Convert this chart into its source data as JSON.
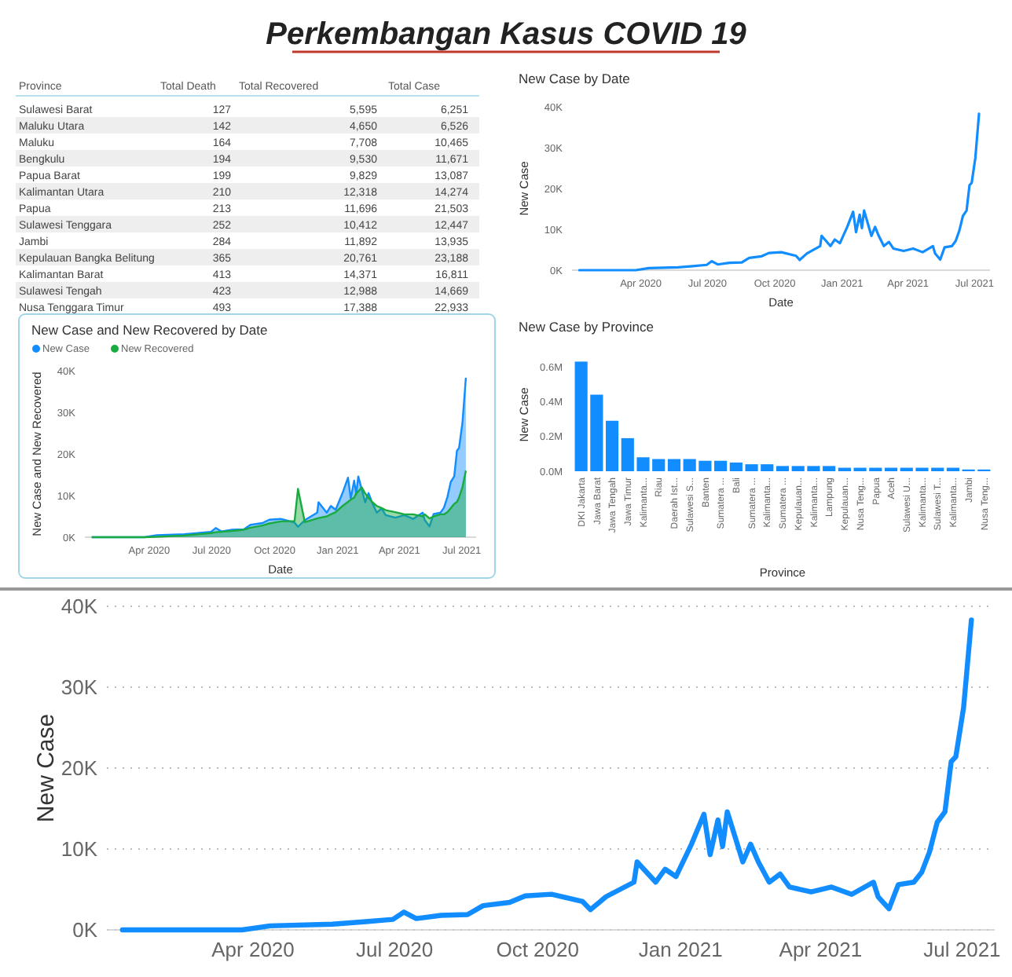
{
  "chart_data": [
    {
      "type": "other",
      "title": "Perkembangan Kasus COVID 19",
      "categories": [
        "Province",
        "Total Death",
        "Total Recovered",
        "Total Case"
      ],
      "y_categories": [
        "Sulawesi Barat",
        "Maluku Utara",
        "Maluku",
        "Bengkulu",
        "Papua Barat",
        "Kalimantan Utara",
        "Papua",
        "Sulawesi Tenggara",
        "Jambi",
        "Kepulauan Bangka Belitung",
        "Kalimantan Barat",
        "Sulawesi Tengah",
        "Nusa Tenggara Timur"
      ],
      "cell_labels": [
        [
          "127",
          "5,595",
          "6,251"
        ],
        [
          "142",
          "4,650",
          "6,526"
        ],
        [
          "164",
          "7,708",
          "10,465"
        ],
        [
          "194",
          "9,530",
          "11,671"
        ],
        [
          "199",
          "9,829",
          "13,087"
        ],
        [
          "210",
          "12,318",
          "14,274"
        ],
        [
          "213",
          "11,696",
          "21,503"
        ],
        [
          "252",
          "10,412",
          "12,447"
        ],
        [
          "284",
          "11,892",
          "13,935"
        ],
        [
          "365",
          "20,761",
          "23,188"
        ],
        [
          "413",
          "14,371",
          "16,811"
        ],
        [
          "423",
          "12,988",
          "14,669"
        ],
        [
          "493",
          "17,388",
          "22,933"
        ]
      ]
    },
    {
      "type": "line",
      "title": "New Case by Date",
      "xlabel": "Date",
      "ylabel": "New Case",
      "color": "#118dff",
      "x": [
        "2020-01-08",
        "2020-03-25",
        "2020-04-12",
        "2020-05-22",
        "2020-06-11",
        "2020-06-30",
        "2020-07-07",
        "2020-07-15",
        "2020-07-31",
        "2020-08-17",
        "2020-08-27",
        "2020-09-13",
        "2020-09-23",
        "2020-10-10",
        "2020-10-30",
        "2020-11-04",
        "2020-11-14",
        "2020-12-02",
        "2020-12-04",
        "2020-12-16",
        "2020-12-22",
        "2020-12-29",
        "2021-01-08",
        "2021-01-16",
        "2021-01-20",
        "2021-01-25",
        "2021-01-28",
        "2021-01-31",
        "2021-02-05",
        "2021-02-10",
        "2021-02-15",
        "2021-02-20",
        "2021-02-27",
        "2021-03-06",
        "2021-03-12",
        "2021-03-26",
        "2021-04-08",
        "2021-04-21",
        "2021-05-05",
        "2021-05-08",
        "2021-05-15",
        "2021-05-21",
        "2021-05-31",
        "2021-06-05",
        "2021-06-10",
        "2021-06-15",
        "2021-06-20",
        "2021-06-24",
        "2021-06-27",
        "2021-07-02",
        "2021-07-07"
      ],
      "values": [
        0,
        0,
        500,
        700,
        1000,
        1300,
        2200,
        1400,
        1800,
        1900,
        3000,
        3400,
        4200,
        4400,
        3500,
        2500,
        4100,
        5900,
        8400,
        5900,
        7500,
        6600,
        10600,
        14300,
        9300,
        13600,
        10300,
        14600,
        11500,
        8400,
        10600,
        8400,
        5900,
        6900,
        5300,
        4700,
        5300,
        4400,
        5900,
        4100,
        2600,
        5600,
        5900,
        7100,
        9600,
        13300,
        14600,
        20800,
        21400,
        27500,
        38300
      ],
      "xlim": [
        "2019-12-29",
        "2021-07-22"
      ],
      "ylim": [
        0,
        40000
      ],
      "xticks": [
        {
          "value": "2020-04-01",
          "label": "Apr 2020"
        },
        {
          "value": "2020-07-01",
          "label": "Jul 2020"
        },
        {
          "value": "2020-10-01",
          "label": "Oct 2020"
        },
        {
          "value": "2021-01-01",
          "label": "Jan 2021"
        },
        {
          "value": "2021-04-01",
          "label": "Apr 2021"
        },
        {
          "value": "2021-07-01",
          "label": "Jul 2021"
        }
      ],
      "yticks": [
        {
          "value": 0,
          "label": "0K"
        },
        {
          "value": 10000,
          "label": "10K"
        },
        {
          "value": 20000,
          "label": "20K"
        },
        {
          "value": 30000,
          "label": "30K"
        },
        {
          "value": 40000,
          "label": "40K"
        }
      ]
    },
    {
      "type": "area",
      "title": "New Case and New Recovered by Date",
      "xlabel": "Date",
      "ylabel": "New Case and New Recovered",
      "legend": "top left",
      "x": [
        "2020-01-08",
        "2020-03-25",
        "2020-04-12",
        "2020-05-22",
        "2020-06-11",
        "2020-06-30",
        "2020-07-07",
        "2020-07-15",
        "2020-07-31",
        "2020-08-17",
        "2020-08-27",
        "2020-09-13",
        "2020-09-23",
        "2020-10-10",
        "2020-10-30",
        "2020-11-04",
        "2020-11-14",
        "2020-12-02",
        "2020-12-04",
        "2020-12-16",
        "2020-12-22",
        "2020-12-29",
        "2021-01-08",
        "2021-01-16",
        "2021-01-20",
        "2021-01-25",
        "2021-01-28",
        "2021-01-31",
        "2021-02-05",
        "2021-02-10",
        "2021-02-15",
        "2021-02-20",
        "2021-02-27",
        "2021-03-06",
        "2021-03-12",
        "2021-03-26",
        "2021-04-08",
        "2021-04-21",
        "2021-05-05",
        "2021-05-08",
        "2021-05-15",
        "2021-05-21",
        "2021-05-31",
        "2021-06-05",
        "2021-06-10",
        "2021-06-15",
        "2021-06-20",
        "2021-06-24",
        "2021-06-27",
        "2021-07-02",
        "2021-07-07"
      ],
      "series": [
        {
          "name": "New Case",
          "color": "#118dff",
          "values": [
            0,
            0,
            500,
            700,
            1000,
            1300,
            2200,
            1400,
            1800,
            1900,
            3000,
            3400,
            4200,
            4400,
            3500,
            2500,
            4100,
            5900,
            8400,
            5900,
            7500,
            6600,
            10600,
            14300,
            9300,
            13600,
            10300,
            14600,
            11500,
            8400,
            10600,
            8400,
            5900,
            6900,
            5300,
            4700,
            5300,
            4400,
            5900,
            4100,
            2600,
            5600,
            5900,
            7100,
            9600,
            13300,
            14600,
            20800,
            21400,
            27500,
            38300
          ]
        },
        {
          "name": "New Recovered",
          "color": "#1aab40",
          "values": [
            0,
            0,
            100,
            400,
            700,
            1000,
            1200,
            1300,
            1500,
            1800,
            2300,
            2800,
            3300,
            3800,
            3900,
            11600,
            3600,
            4500,
            4600,
            5000,
            5500,
            6000,
            7500,
            8500,
            9000,
            9500,
            10500,
            11000,
            12000,
            10500,
            9500,
            8500,
            7500,
            7000,
            6500,
            6000,
            5500,
            5500,
            5000,
            5500,
            4500,
            5000,
            5500,
            5500,
            6000,
            7000,
            8000,
            8500,
            9500,
            12000,
            16000
          ]
        }
      ],
      "xlim": [
        "2019-12-29",
        "2021-07-22"
      ],
      "ylim": [
        0,
        40000
      ],
      "xticks": [
        {
          "value": "2020-04-01",
          "label": "Apr 2020"
        },
        {
          "value": "2020-07-01",
          "label": "Jul 2020"
        },
        {
          "value": "2020-10-01",
          "label": "Oct 2020"
        },
        {
          "value": "2021-01-01",
          "label": "Jan 2021"
        },
        {
          "value": "2021-04-01",
          "label": "Apr 2021"
        },
        {
          "value": "2021-07-01",
          "label": "Jul 2021"
        }
      ],
      "yticks": [
        {
          "value": 0,
          "label": "0K"
        },
        {
          "value": 10000,
          "label": "10K"
        },
        {
          "value": 20000,
          "label": "20K"
        },
        {
          "value": 30000,
          "label": "30K"
        },
        {
          "value": 40000,
          "label": "40K"
        }
      ]
    },
    {
      "type": "bar",
      "title": "New Case by Province",
      "xlabel": "Province",
      "ylabel": "New Case",
      "color": "#118dff",
      "categories": [
        "DKI Jakarta",
        "Jawa Barat",
        "Jawa Tengah",
        "Jawa Timur",
        "Kalimanta...",
        "Riau",
        "Daerah Ist...",
        "Sulawesi S...",
        "Banten",
        "Sumatera ...",
        "Bali",
        "Sumatera ...",
        "Kalimanta...",
        "Sumatera ...",
        "Kepulauan...",
        "Kalimanta...",
        "Lampung",
        "Kepulauan...",
        "Nusa Teng...",
        "Papua",
        "Aceh",
        "Sulawesi U...",
        "Kalimanta...",
        "Sulawesi T...",
        "Kalimanta...",
        "Jambi",
        "Nusa Teng..."
      ],
      "values": [
        0.63,
        0.44,
        0.29,
        0.19,
        0.08,
        0.07,
        0.07,
        0.07,
        0.06,
        0.06,
        0.05,
        0.04,
        0.04,
        0.03,
        0.03,
        0.03,
        0.03,
        0.02,
        0.02,
        0.02,
        0.02,
        0.02,
        0.02,
        0.02,
        0.02,
        0.01,
        0.01
      ],
      "ylim": [
        0,
        0.65
      ],
      "yticks": [
        {
          "value": 0,
          "label": "0.0M"
        },
        {
          "value": 0.2,
          "label": "0.2M"
        },
        {
          "value": 0.4,
          "label": "0.4M"
        },
        {
          "value": 0.6,
          "label": "0.6M"
        }
      ]
    },
    {
      "type": "line",
      "ylabel": "New Case",
      "color": "#118dff",
      "grid": "y",
      "x": [
        "2020-01-08",
        "2020-03-25",
        "2020-04-12",
        "2020-05-22",
        "2020-06-11",
        "2020-06-30",
        "2020-07-07",
        "2020-07-15",
        "2020-07-31",
        "2020-08-17",
        "2020-08-27",
        "2020-09-13",
        "2020-09-23",
        "2020-10-10",
        "2020-10-30",
        "2020-11-04",
        "2020-11-14",
        "2020-12-02",
        "2020-12-04",
        "2020-12-16",
        "2020-12-22",
        "2020-12-29",
        "2021-01-08",
        "2021-01-16",
        "2021-01-20",
        "2021-01-25",
        "2021-01-28",
        "2021-01-31",
        "2021-02-05",
        "2021-02-10",
        "2021-02-15",
        "2021-02-20",
        "2021-02-27",
        "2021-03-06",
        "2021-03-12",
        "2021-03-26",
        "2021-04-08",
        "2021-04-21",
        "2021-05-05",
        "2021-05-08",
        "2021-05-15",
        "2021-05-21",
        "2021-05-31",
        "2021-06-05",
        "2021-06-10",
        "2021-06-15",
        "2021-06-20",
        "2021-06-24",
        "2021-06-27",
        "2021-07-02",
        "2021-07-07"
      ],
      "values": [
        0,
        0,
        500,
        700,
        1000,
        1300,
        2200,
        1400,
        1800,
        1900,
        3000,
        3400,
        4200,
        4400,
        3500,
        2500,
        4100,
        5900,
        8400,
        5900,
        7500,
        6600,
        10600,
        14300,
        9300,
        13600,
        10300,
        14600,
        11500,
        8400,
        10600,
        8400,
        5900,
        6900,
        5300,
        4700,
        5300,
        4400,
        5900,
        4100,
        2600,
        5600,
        5900,
        7100,
        9600,
        13300,
        14600,
        20800,
        21400,
        27500,
        38300
      ],
      "xlim": [
        "2019-12-29",
        "2021-07-22"
      ],
      "ylim": [
        0,
        40000
      ],
      "xticks": [
        {
          "value": "2020-04-01",
          "label": "Apr 2020"
        },
        {
          "value": "2020-07-01",
          "label": "Jul 2020"
        },
        {
          "value": "2020-10-01",
          "label": "Oct 2020"
        },
        {
          "value": "2021-01-01",
          "label": "Jan 2021"
        },
        {
          "value": "2021-04-01",
          "label": "Apr 2021"
        },
        {
          "value": "2021-07-01",
          "label": "Jul 2021"
        }
      ],
      "yticks": [
        {
          "value": 0,
          "label": "0K"
        },
        {
          "value": 10000,
          "label": "10K"
        },
        {
          "value": 20000,
          "label": "20K"
        },
        {
          "value": 30000,
          "label": "30K"
        },
        {
          "value": 40000,
          "label": "40K"
        }
      ]
    }
  ]
}
